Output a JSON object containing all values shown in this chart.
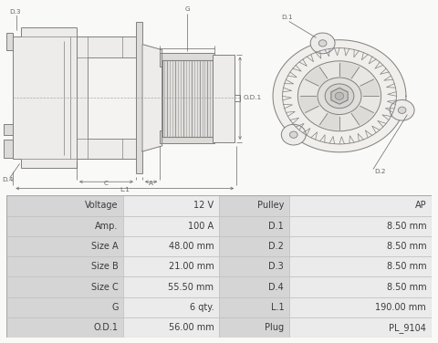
{
  "table_rows": [
    [
      "Voltage",
      "12 V",
      "Pulley",
      "AP"
    ],
    [
      "Amp.",
      "100 A",
      "D.1",
      "8.50 mm"
    ],
    [
      "Size A",
      "48.00 mm",
      "D.2",
      "8.50 mm"
    ],
    [
      "Size B",
      "21.00 mm",
      "D.3",
      "8.50 mm"
    ],
    [
      "Size C",
      "55.50 mm",
      "D.4",
      "8.50 mm"
    ],
    [
      "G",
      "6 qty.",
      "L.1",
      "190.00 mm"
    ],
    [
      "O.D.1",
      "56.00 mm",
      "Plug",
      "PL_9104"
    ]
  ],
  "label_bg": "#d5d5d5",
  "value_bg": "#ebebeb",
  "border_color": "#c0c0c0",
  "text_color": "#3a3a3a",
  "font_size": 7.0,
  "figure_bg": "#f9f9f7",
  "line_color": "#808080",
  "dim_color": "#555555"
}
